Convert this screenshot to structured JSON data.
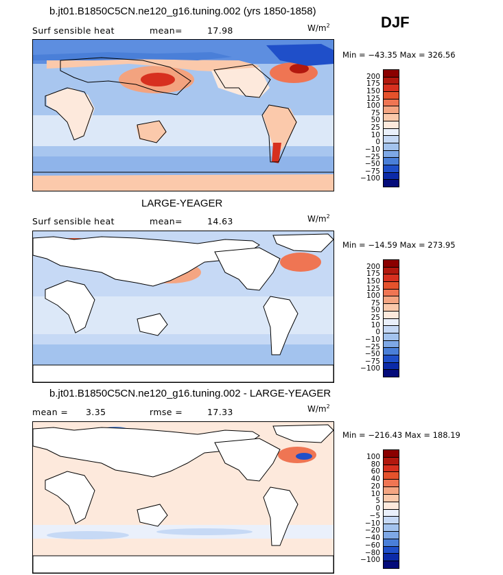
{
  "season": "DJF",
  "units_base": "W/m",
  "units_exp": "2",
  "panels": [
    {
      "title": "b.jt01.B1850C5CN.ne120_g16.tuning.002 (yrs 1850-1858)",
      "left_label": "Surf sensible heat",
      "stat_label": "mean=",
      "stat_value": "17.98",
      "minmax": "Min = −43.35 Max = 326.56",
      "colorbar_ticks": [
        "200",
        "175",
        "150",
        "125",
        "100",
        "75",
        "50",
        "25",
        "10",
        "0",
        "−10",
        "−25",
        "−50",
        "−75",
        "−100"
      ],
      "colorbar_colors": [
        "#8b0000",
        "#b2180e",
        "#d7301f",
        "#e5522c",
        "#ef7553",
        "#f4a582",
        "#fbc9ab",
        "#fde9dc",
        "#eaf0fb",
        "#c6d9f5",
        "#a3c3ee",
        "#7ea8e6",
        "#4a7fd8",
        "#1f4fc9",
        "#0b2aa8",
        "#050c7a"
      ]
    },
    {
      "title": "LARGE-YEAGER",
      "left_label": "Surf sensible heat",
      "stat_label": "mean=",
      "stat_value": "14.63",
      "minmax": "Min = −14.59 Max = 273.95",
      "colorbar_ticks": [
        "200",
        "175",
        "150",
        "125",
        "100",
        "75",
        "50",
        "25",
        "10",
        "0",
        "−10",
        "−25",
        "−50",
        "−75",
        "−100"
      ],
      "colorbar_colors": [
        "#8b0000",
        "#b2180e",
        "#d7301f",
        "#e5522c",
        "#ef7553",
        "#f4a582",
        "#fbc9ab",
        "#fde9dc",
        "#eaf0fb",
        "#c6d9f5",
        "#a3c3ee",
        "#7ea8e6",
        "#4a7fd8",
        "#1f4fc9",
        "#0b2aa8",
        "#050c7a"
      ]
    },
    {
      "title": "b.jt01.B1850C5CN.ne120_g16.tuning.002 - LARGE-YEAGER",
      "left_label": "mean =",
      "left_value": "3.35",
      "stat_label": "rmse =",
      "stat_value": "17.33",
      "minmax": "Min = −216.43 Max = 188.19",
      "colorbar_ticks": [
        "100",
        "80",
        "60",
        "40",
        "20",
        "10",
        "5",
        "0",
        "−5",
        "−10",
        "−20",
        "−40",
        "−60",
        "−80",
        "−100"
      ],
      "colorbar_colors": [
        "#8b0000",
        "#b2180e",
        "#d7301f",
        "#e5522c",
        "#ef7553",
        "#f4a582",
        "#fbc9ab",
        "#fde9dc",
        "#eaf0fb",
        "#c6d9f5",
        "#a3c3ee",
        "#7ea8e6",
        "#4a7fd8",
        "#1f4fc9",
        "#0b2aa8",
        "#050c7a"
      ]
    }
  ]
}
